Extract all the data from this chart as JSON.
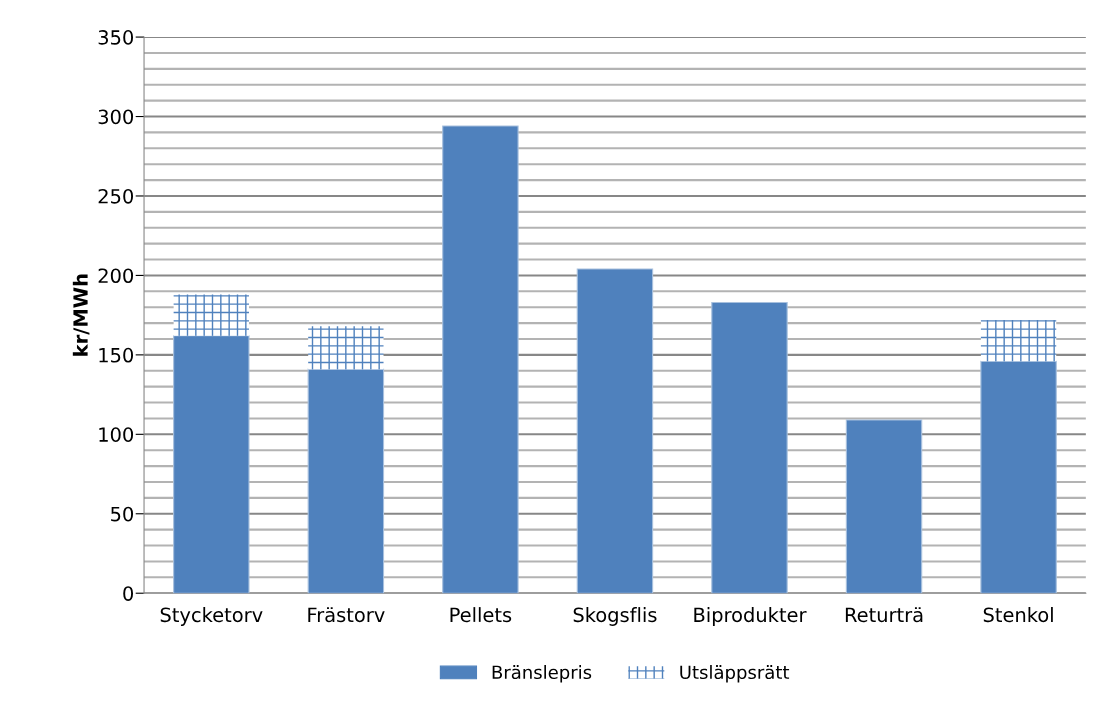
{
  "chart_data": {
    "type": "bar",
    "stacked": true,
    "ylabel": "kr/MWh",
    "categories": [
      "Stycketorv",
      "Frästorv",
      "Pellets",
      "Skogsflis",
      "Biprodukter",
      "Returträ",
      "Stenkol"
    ],
    "series": [
      {
        "name": "Bränslepris",
        "color": "#4f81bd",
        "values": [
          162,
          141,
          294,
          204,
          183,
          109,
          146
        ]
      },
      {
        "name": "Utsläppsrätt",
        "color": "#4f81bd",
        "values": [
          26,
          27,
          null,
          null,
          null,
          null,
          26
        ]
      }
    ],
    "ylim": [
      0,
      350
    ],
    "yticks": [
      0,
      {
        "value": 10,
        "label": null
      },
      {
        "value": 20,
        "label": null
      },
      {
        "value": 30,
        "label": null
      },
      {
        "value": 40,
        "label": null
      },
      50,
      {
        "value": 60,
        "label": null
      },
      {
        "value": 70,
        "label": null
      },
      {
        "value": 80,
        "label": null
      },
      {
        "value": 90,
        "label": null
      },
      100,
      {
        "value": 110,
        "label": null
      },
      {
        "value": 120,
        "label": null
      },
      {
        "value": 130,
        "label": null
      },
      {
        "value": 140,
        "label": null
      },
      150,
      {
        "value": 160,
        "label": null
      },
      {
        "value": 170,
        "label": null
      },
      {
        "value": 180,
        "label": null
      },
      {
        "value": 190,
        "label": null
      },
      200,
      {
        "value": 210,
        "label": null
      },
      {
        "value": 220,
        "label": null
      },
      {
        "value": 230,
        "label": null
      },
      {
        "value": 240,
        "label": null
      },
      250,
      {
        "value": 260,
        "label": null
      },
      {
        "value": 270,
        "label": null
      },
      {
        "value": 280,
        "label": null
      },
      {
        "value": 290,
        "label": null
      },
      300,
      {
        "value": 310,
        "label": null
      },
      {
        "value": 320,
        "label": null
      },
      {
        "value": 330,
        "label": null
      },
      {
        "value": 340,
        "label": null
      },
      350
    ],
    "grid": "y",
    "legend": "bottom"
  }
}
